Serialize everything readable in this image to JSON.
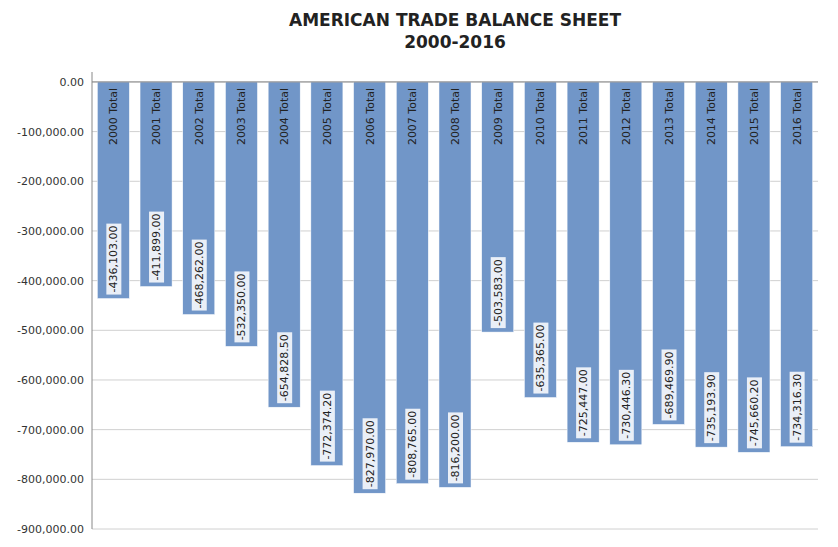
{
  "chart_data": {
    "type": "bar",
    "title": "AMERICAN TRADE BALANCE SHEET",
    "subtitle": "2000-2016",
    "categories": [
      "2000 Total",
      "2001 Total",
      "2002 Total",
      "2003 Total",
      "2004 Total",
      "2005 Total",
      "2006 Total",
      "2007 Total",
      "2008 Total",
      "2009 Total",
      "2010 Total",
      "2011 Total",
      "2012 Total",
      "2013 Total",
      "2014 Total",
      "2015 Total",
      "2016 Total"
    ],
    "values": [
      -436103.0,
      -411899.0,
      -468262.0,
      -532350.0,
      -654828.5,
      -772374.2,
      -827970.0,
      -808765.0,
      -816200.0,
      -503583.0,
      -635365.0,
      -725447.0,
      -730446.3,
      -689469.9,
      -735193.9,
      -745660.2,
      -734316.3
    ],
    "value_labels": [
      "-436,103.00",
      "-411,899.00",
      "-468,262.00",
      "-532,350.00",
      "-654,828.50",
      "-772,374.20",
      "-827,970.00",
      "-808,765.00",
      "-816,200.00",
      "-503,583.00",
      "-635,365.00",
      "-725,447.00",
      "-730,446.30",
      "-689,469.90",
      "-735,193.90",
      "-745,660.20",
      "-734,316.30"
    ],
    "data_labels": true,
    "color": "#7196c8",
    "ylim": [
      -900000,
      20000
    ],
    "yticks": [
      {
        "value": 0,
        "label": "0.00"
      },
      {
        "value": -100000,
        "label": "-100,000.00"
      },
      {
        "value": -200000,
        "label": "-200,000.00"
      },
      {
        "value": -300000,
        "label": "-300,000.00"
      },
      {
        "value": -400000,
        "label": "-400,000.00"
      },
      {
        "value": -500000,
        "label": "-500,000.00"
      },
      {
        "value": -600000,
        "label": "-600,000.00"
      },
      {
        "value": -700000,
        "label": "-700,000.00"
      },
      {
        "value": -800000,
        "label": "-800,000.00"
      },
      {
        "value": -900000,
        "label": "-900,000.00"
      }
    ],
    "grid": true
  }
}
